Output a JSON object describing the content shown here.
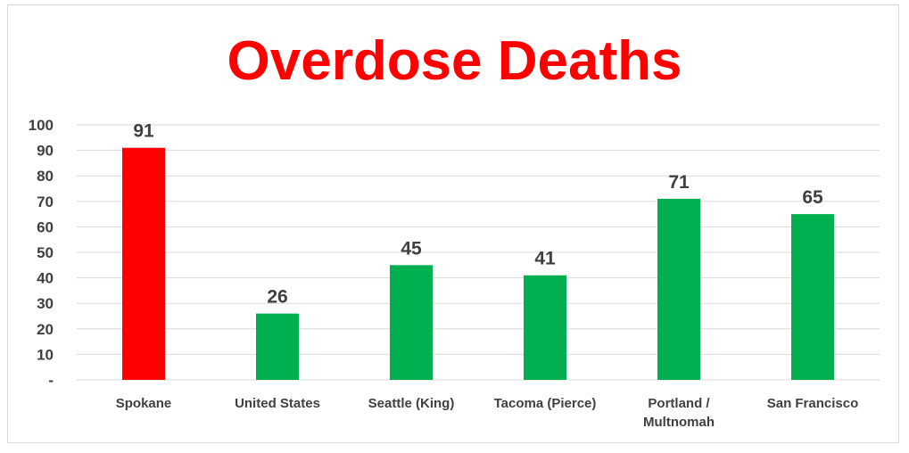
{
  "chart_data": {
    "type": "bar",
    "title": "Overdose Deaths",
    "xlabel": "",
    "ylabel": "",
    "categories": [
      [
        "Spokane"
      ],
      [
        "United States"
      ],
      [
        "Seattle  (King)"
      ],
      [
        "Tacoma  (Pierce)"
      ],
      [
        "Portland /",
        "Multnomah"
      ],
      [
        "San Francisco"
      ]
    ],
    "values": [
      91,
      26,
      45,
      41,
      71,
      65
    ],
    "bar_colors": [
      "#ff0000",
      "#00b050",
      "#00b050",
      "#00b050",
      "#00b050",
      "#00b050"
    ],
    "ylim": [
      0,
      100
    ],
    "yticks": [
      0,
      10,
      20,
      30,
      40,
      50,
      60,
      70,
      80,
      90,
      100
    ],
    "ytick_labels": [
      "-",
      "10",
      "20",
      "30",
      "40",
      "50",
      "60",
      "70",
      "80",
      "90",
      "100"
    ],
    "grid": true,
    "legend": "none",
    "colors": {
      "title": "#ff0000",
      "text": "#404040",
      "grid": "#d9d9d9"
    }
  }
}
